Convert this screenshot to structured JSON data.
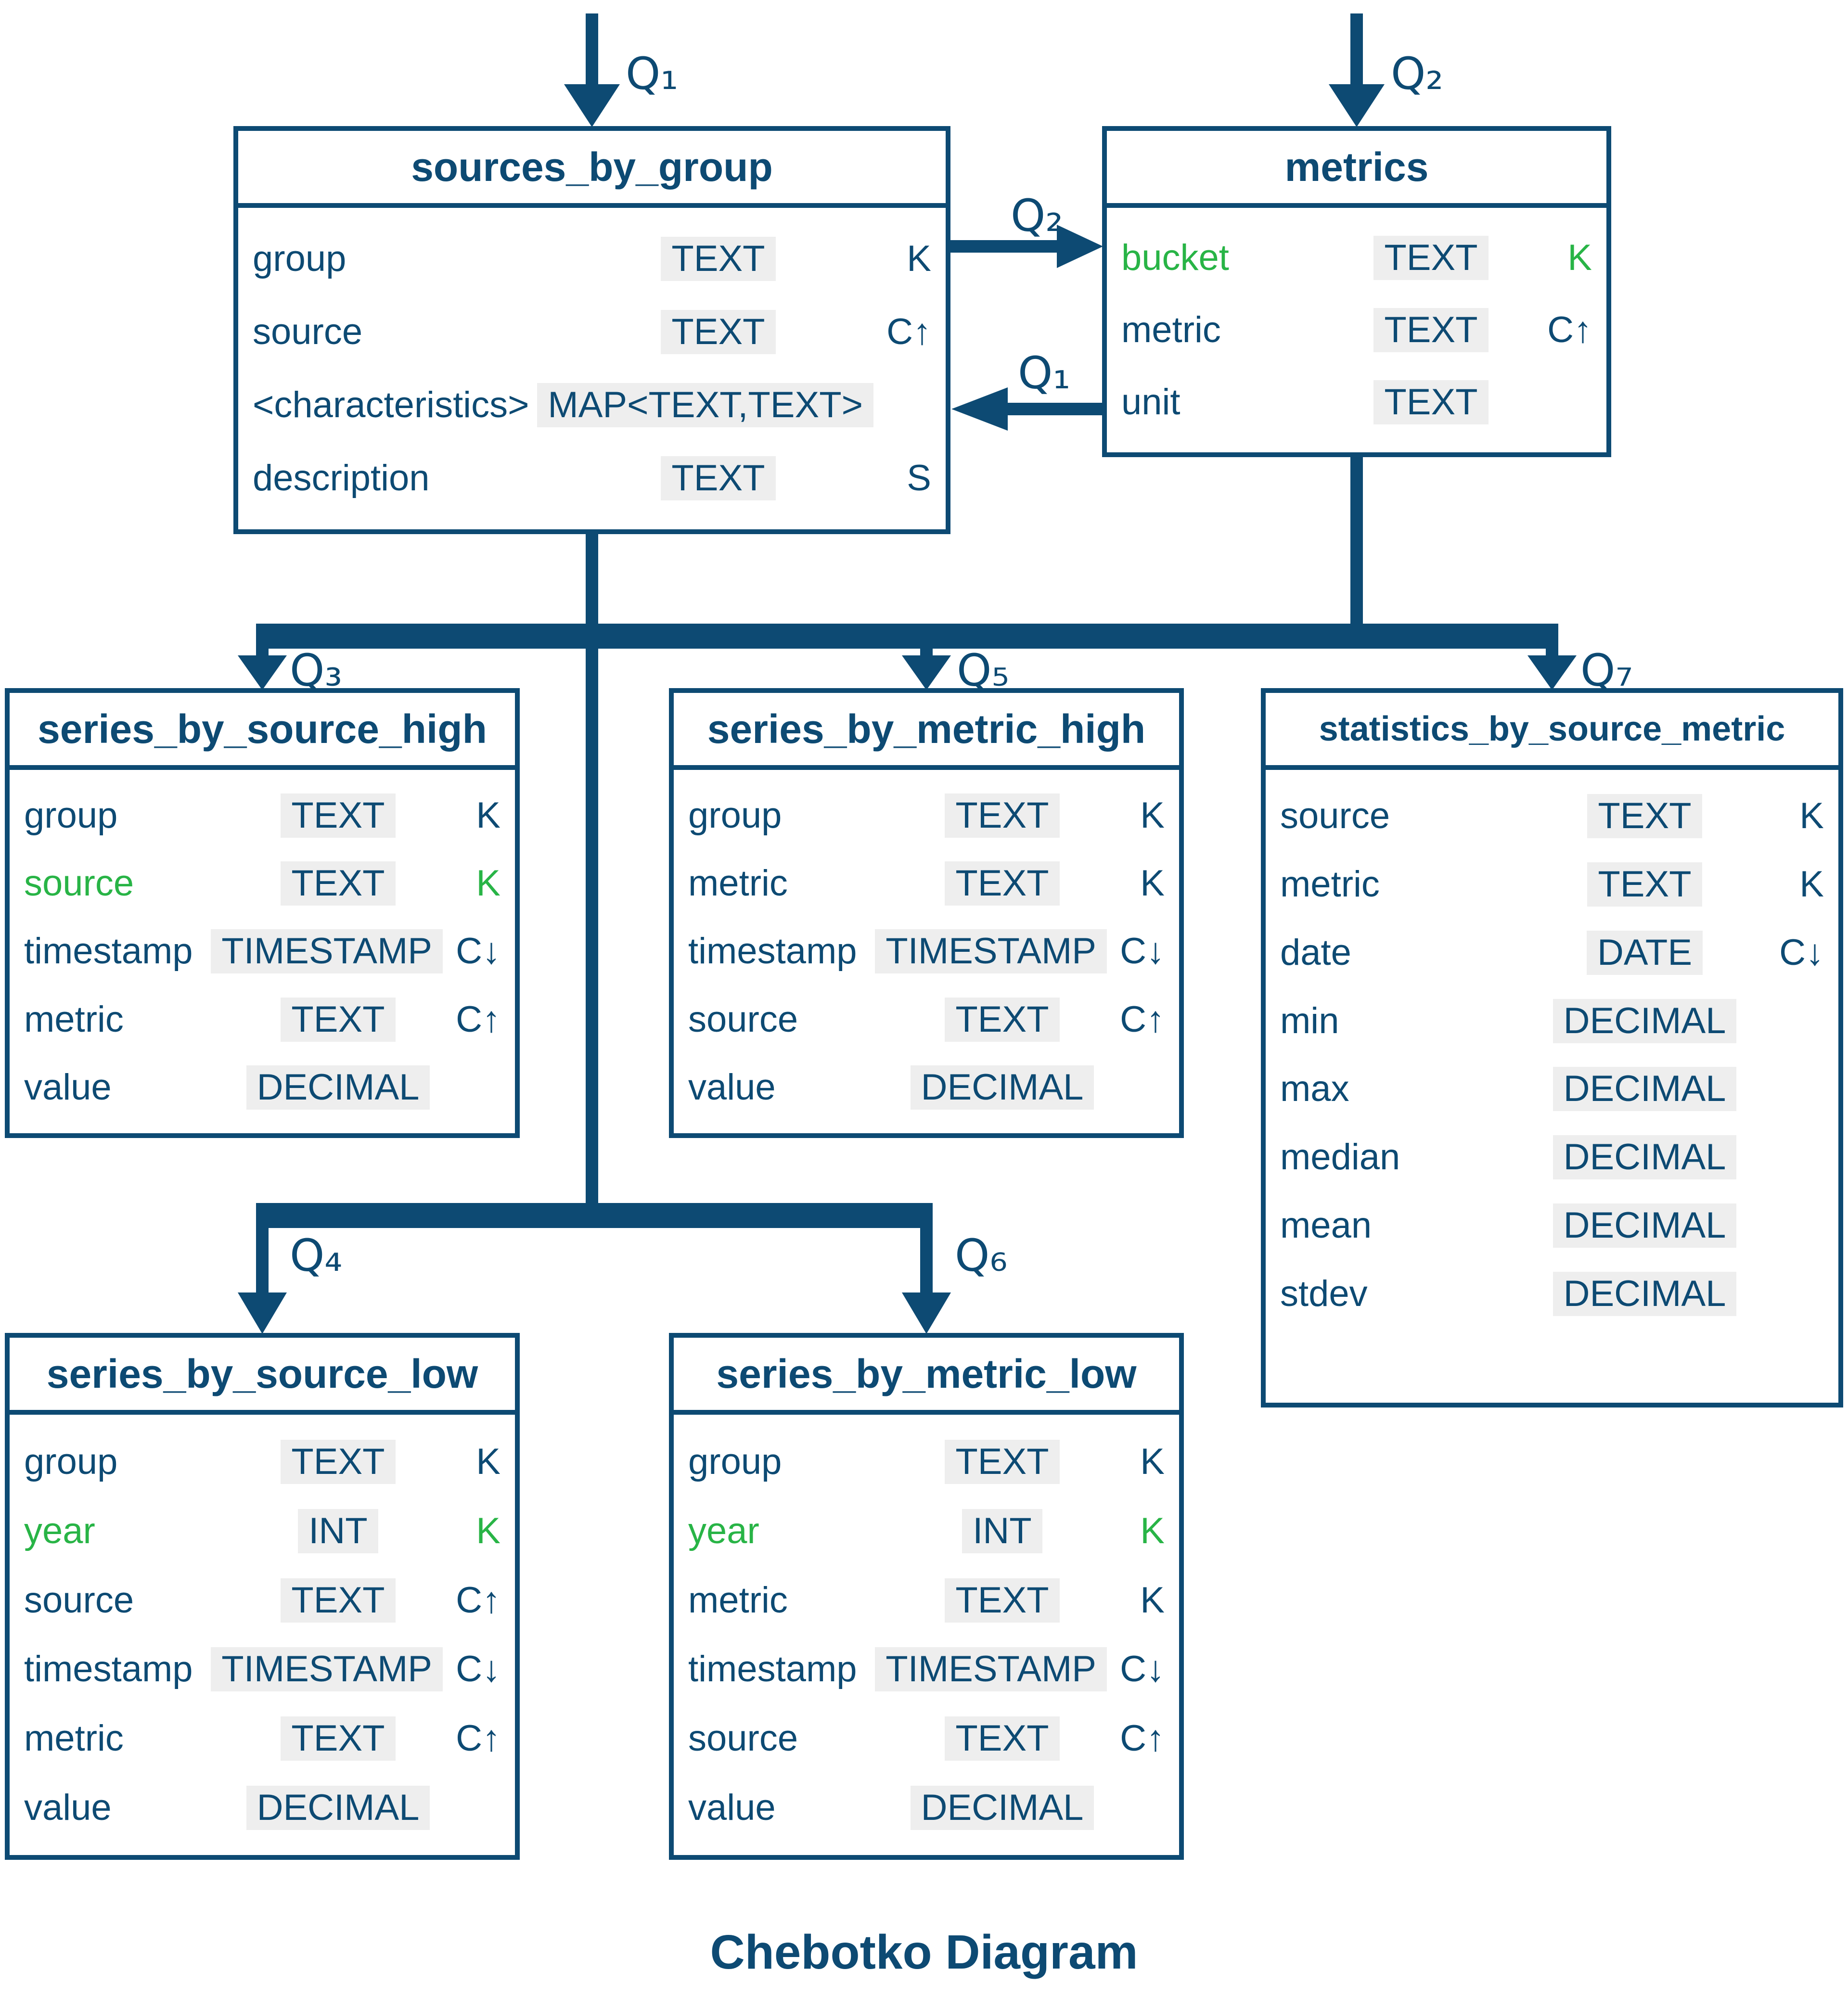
{
  "caption": "Chebotko Diagram",
  "colors": {
    "navy": "#0d4a73",
    "green": "#28b446",
    "chip_bg": "#eeeeee"
  },
  "tables": [
    {
      "id": "sources_by_group",
      "title": "sources_by_group",
      "fields": [
        {
          "name": "group",
          "type": "TEXT",
          "key": "K"
        },
        {
          "name": "source",
          "type": "TEXT",
          "key": "C↑"
        },
        {
          "name": "<characteristics>",
          "type": "MAP<TEXT,TEXT>",
          "key": ""
        },
        {
          "name": "description",
          "type": "TEXT",
          "key": "S"
        }
      ]
    },
    {
      "id": "metrics",
      "title": "metrics",
      "fields": [
        {
          "name": "bucket",
          "type": "TEXT",
          "key": "K",
          "accent": true
        },
        {
          "name": "metric",
          "type": "TEXT",
          "key": "C↑"
        },
        {
          "name": "unit",
          "type": "TEXT",
          "key": ""
        }
      ]
    },
    {
      "id": "series_by_source_high",
      "title": "series_by_source_high",
      "fields": [
        {
          "name": "group",
          "type": "TEXT",
          "key": "K"
        },
        {
          "name": "source",
          "type": "TEXT",
          "key": "K",
          "accent": true
        },
        {
          "name": "timestamp",
          "type": "TIMESTAMP",
          "key": "C↓"
        },
        {
          "name": "metric",
          "type": "TEXT",
          "key": "C↑"
        },
        {
          "name": "value",
          "type": "DECIMAL",
          "key": ""
        }
      ]
    },
    {
      "id": "series_by_metric_high",
      "title": "series_by_metric_high",
      "fields": [
        {
          "name": "group",
          "type": "TEXT",
          "key": "K"
        },
        {
          "name": "metric",
          "type": "TEXT",
          "key": "K"
        },
        {
          "name": "timestamp",
          "type": "TIMESTAMP",
          "key": "C↓"
        },
        {
          "name": "source",
          "type": "TEXT",
          "key": "C↑"
        },
        {
          "name": "value",
          "type": "DECIMAL",
          "key": ""
        }
      ]
    },
    {
      "id": "statistics_by_source_metric",
      "title": "statistics_by_source_metric",
      "fields": [
        {
          "name": "source",
          "type": "TEXT",
          "key": "K"
        },
        {
          "name": "metric",
          "type": "TEXT",
          "key": "K"
        },
        {
          "name": "date",
          "type": "DATE",
          "key": "C↓"
        },
        {
          "name": "min",
          "type": "DECIMAL",
          "key": ""
        },
        {
          "name": "max",
          "type": "DECIMAL",
          "key": ""
        },
        {
          "name": "median",
          "type": "DECIMAL",
          "key": ""
        },
        {
          "name": "mean",
          "type": "DECIMAL",
          "key": ""
        },
        {
          "name": "stdev",
          "type": "DECIMAL",
          "key": ""
        }
      ]
    },
    {
      "id": "series_by_source_low",
      "title": "series_by_source_low",
      "fields": [
        {
          "name": "group",
          "type": "TEXT",
          "key": "K"
        },
        {
          "name": "year",
          "type": "INT",
          "key": "K",
          "accent": true
        },
        {
          "name": "source",
          "type": "TEXT",
          "key": "C↑"
        },
        {
          "name": "timestamp",
          "type": "TIMESTAMP",
          "key": "C↓"
        },
        {
          "name": "metric",
          "type": "TEXT",
          "key": "C↑"
        },
        {
          "name": "value",
          "type": "DECIMAL",
          "key": ""
        }
      ]
    },
    {
      "id": "series_by_metric_low",
      "title": "series_by_metric_low",
      "fields": [
        {
          "name": "group",
          "type": "TEXT",
          "key": "K"
        },
        {
          "name": "year",
          "type": "INT",
          "key": "K",
          "accent": true
        },
        {
          "name": "metric",
          "type": "TEXT",
          "key": "K"
        },
        {
          "name": "timestamp",
          "type": "TIMESTAMP",
          "key": "C↓"
        },
        {
          "name": "source",
          "type": "TEXT",
          "key": "C↑"
        },
        {
          "name": "value",
          "type": "DECIMAL",
          "key": ""
        }
      ]
    }
  ],
  "connectors": [
    {
      "id": "q1-in",
      "label": "Q₁",
      "points_to": "sources_by_group"
    },
    {
      "id": "q2-in",
      "label": "Q₂",
      "points_to": "metrics"
    },
    {
      "id": "q2-cross",
      "label": "Q₂",
      "points_to": "metrics"
    },
    {
      "id": "q1-cross",
      "label": "Q₁",
      "points_to": "sources_by_group"
    },
    {
      "id": "q3",
      "label": "Q₃",
      "points_to": "series_by_source_high"
    },
    {
      "id": "q5",
      "label": "Q₅",
      "points_to": "series_by_metric_high"
    },
    {
      "id": "q7",
      "label": "Q₇",
      "points_to": "statistics_by_source_metric"
    },
    {
      "id": "q4",
      "label": "Q₄",
      "points_to": "series_by_source_low"
    },
    {
      "id": "q6",
      "label": "Q₆",
      "points_to": "series_by_metric_low"
    }
  ]
}
